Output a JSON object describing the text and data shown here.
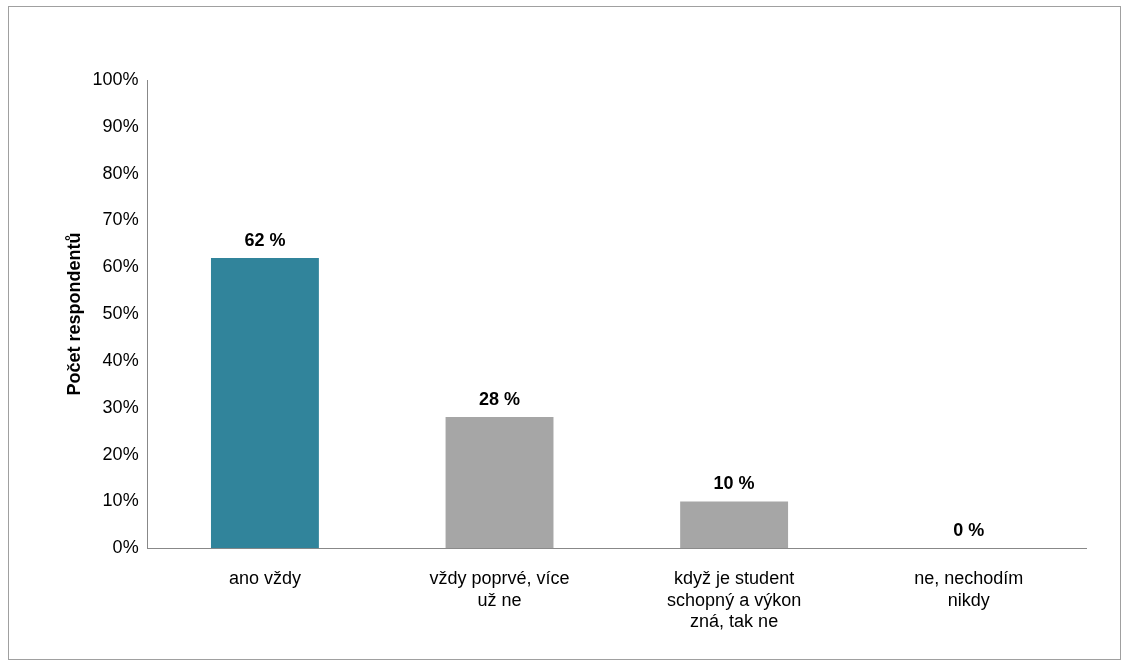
{
  "chart_data": {
    "type": "bar",
    "ylabel": "Počet respondentů",
    "categories": [
      "ano vždy",
      "vždy poprvé, více už ne",
      "když je student schopný a výkon zná, tak ne",
      "ne, nechodím nikdy"
    ],
    "values": [
      62,
      28,
      10,
      0
    ],
    "colors": [
      "#31849b",
      "#a6a6a6",
      "#a6a6a6",
      "#7f7f7f"
    ],
    "value_labels": [
      "62 %",
      "28 %",
      "10 %",
      "0 %"
    ],
    "ylim": [
      0,
      100
    ],
    "yticks": [
      {
        "value": 0,
        "label": "0%"
      },
      {
        "value": 10,
        "label": "10%"
      },
      {
        "value": 20,
        "label": "20%"
      },
      {
        "value": 30,
        "label": "30%"
      },
      {
        "value": 40,
        "label": "40%"
      },
      {
        "value": 50,
        "label": "50%"
      },
      {
        "value": 60,
        "label": "60%"
      },
      {
        "value": 70,
        "label": "70%"
      },
      {
        "value": 80,
        "label": "80%"
      },
      {
        "value": 90,
        "label": "90%"
      },
      {
        "value": 100,
        "label": "100%"
      }
    ],
    "grid": false,
    "legend": false
  }
}
